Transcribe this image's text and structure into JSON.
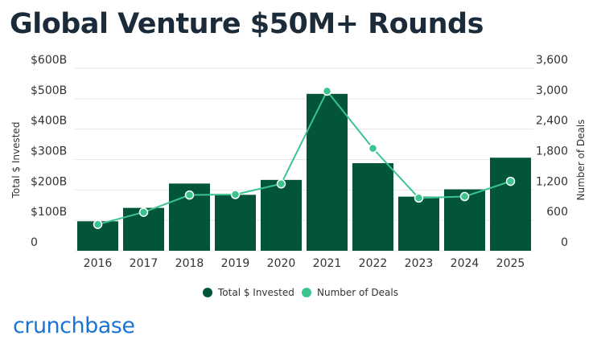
{
  "title": "Global Venture $50M+ Rounds",
  "brand": "crunchbase",
  "colors": {
    "bar": "#02543a",
    "line": "#3cc48f",
    "grid": "#e6e6e6",
    "title": "#1b2b3a",
    "brand": "#1a75d2"
  },
  "chart_data": {
    "type": "bar",
    "categories": [
      "2016",
      "2017",
      "2018",
      "2019",
      "2020",
      "2021",
      "2022",
      "2023",
      "2024",
      "2025"
    ],
    "series": [
      {
        "name": "Total $ Invested",
        "type": "bar",
        "axis": "left",
        "values": [
          97,
          141,
          221,
          184,
          233,
          516,
          288,
          178,
          202,
          306
        ]
      },
      {
        "name": "Number of Deals",
        "type": "line",
        "axis": "right",
        "values": [
          520,
          760,
          1100,
          1110,
          1320,
          3150,
          2020,
          1040,
          1070,
          1370
        ]
      }
    ],
    "ylabel": "Total $ Invested",
    "ylabel_right": "Number of Deals",
    "ylim": [
      0,
      600
    ],
    "ylim_right": [
      0,
      3600
    ],
    "yticks": [
      "0",
      "$100B",
      "$200B",
      "$300B",
      "$400B",
      "$500B",
      "$600B"
    ],
    "yticks_right": [
      "0",
      "600",
      "1,200",
      "1,800",
      "2,400",
      "3,000",
      "3,600"
    ],
    "grid": true,
    "legend": "bottom-center"
  }
}
